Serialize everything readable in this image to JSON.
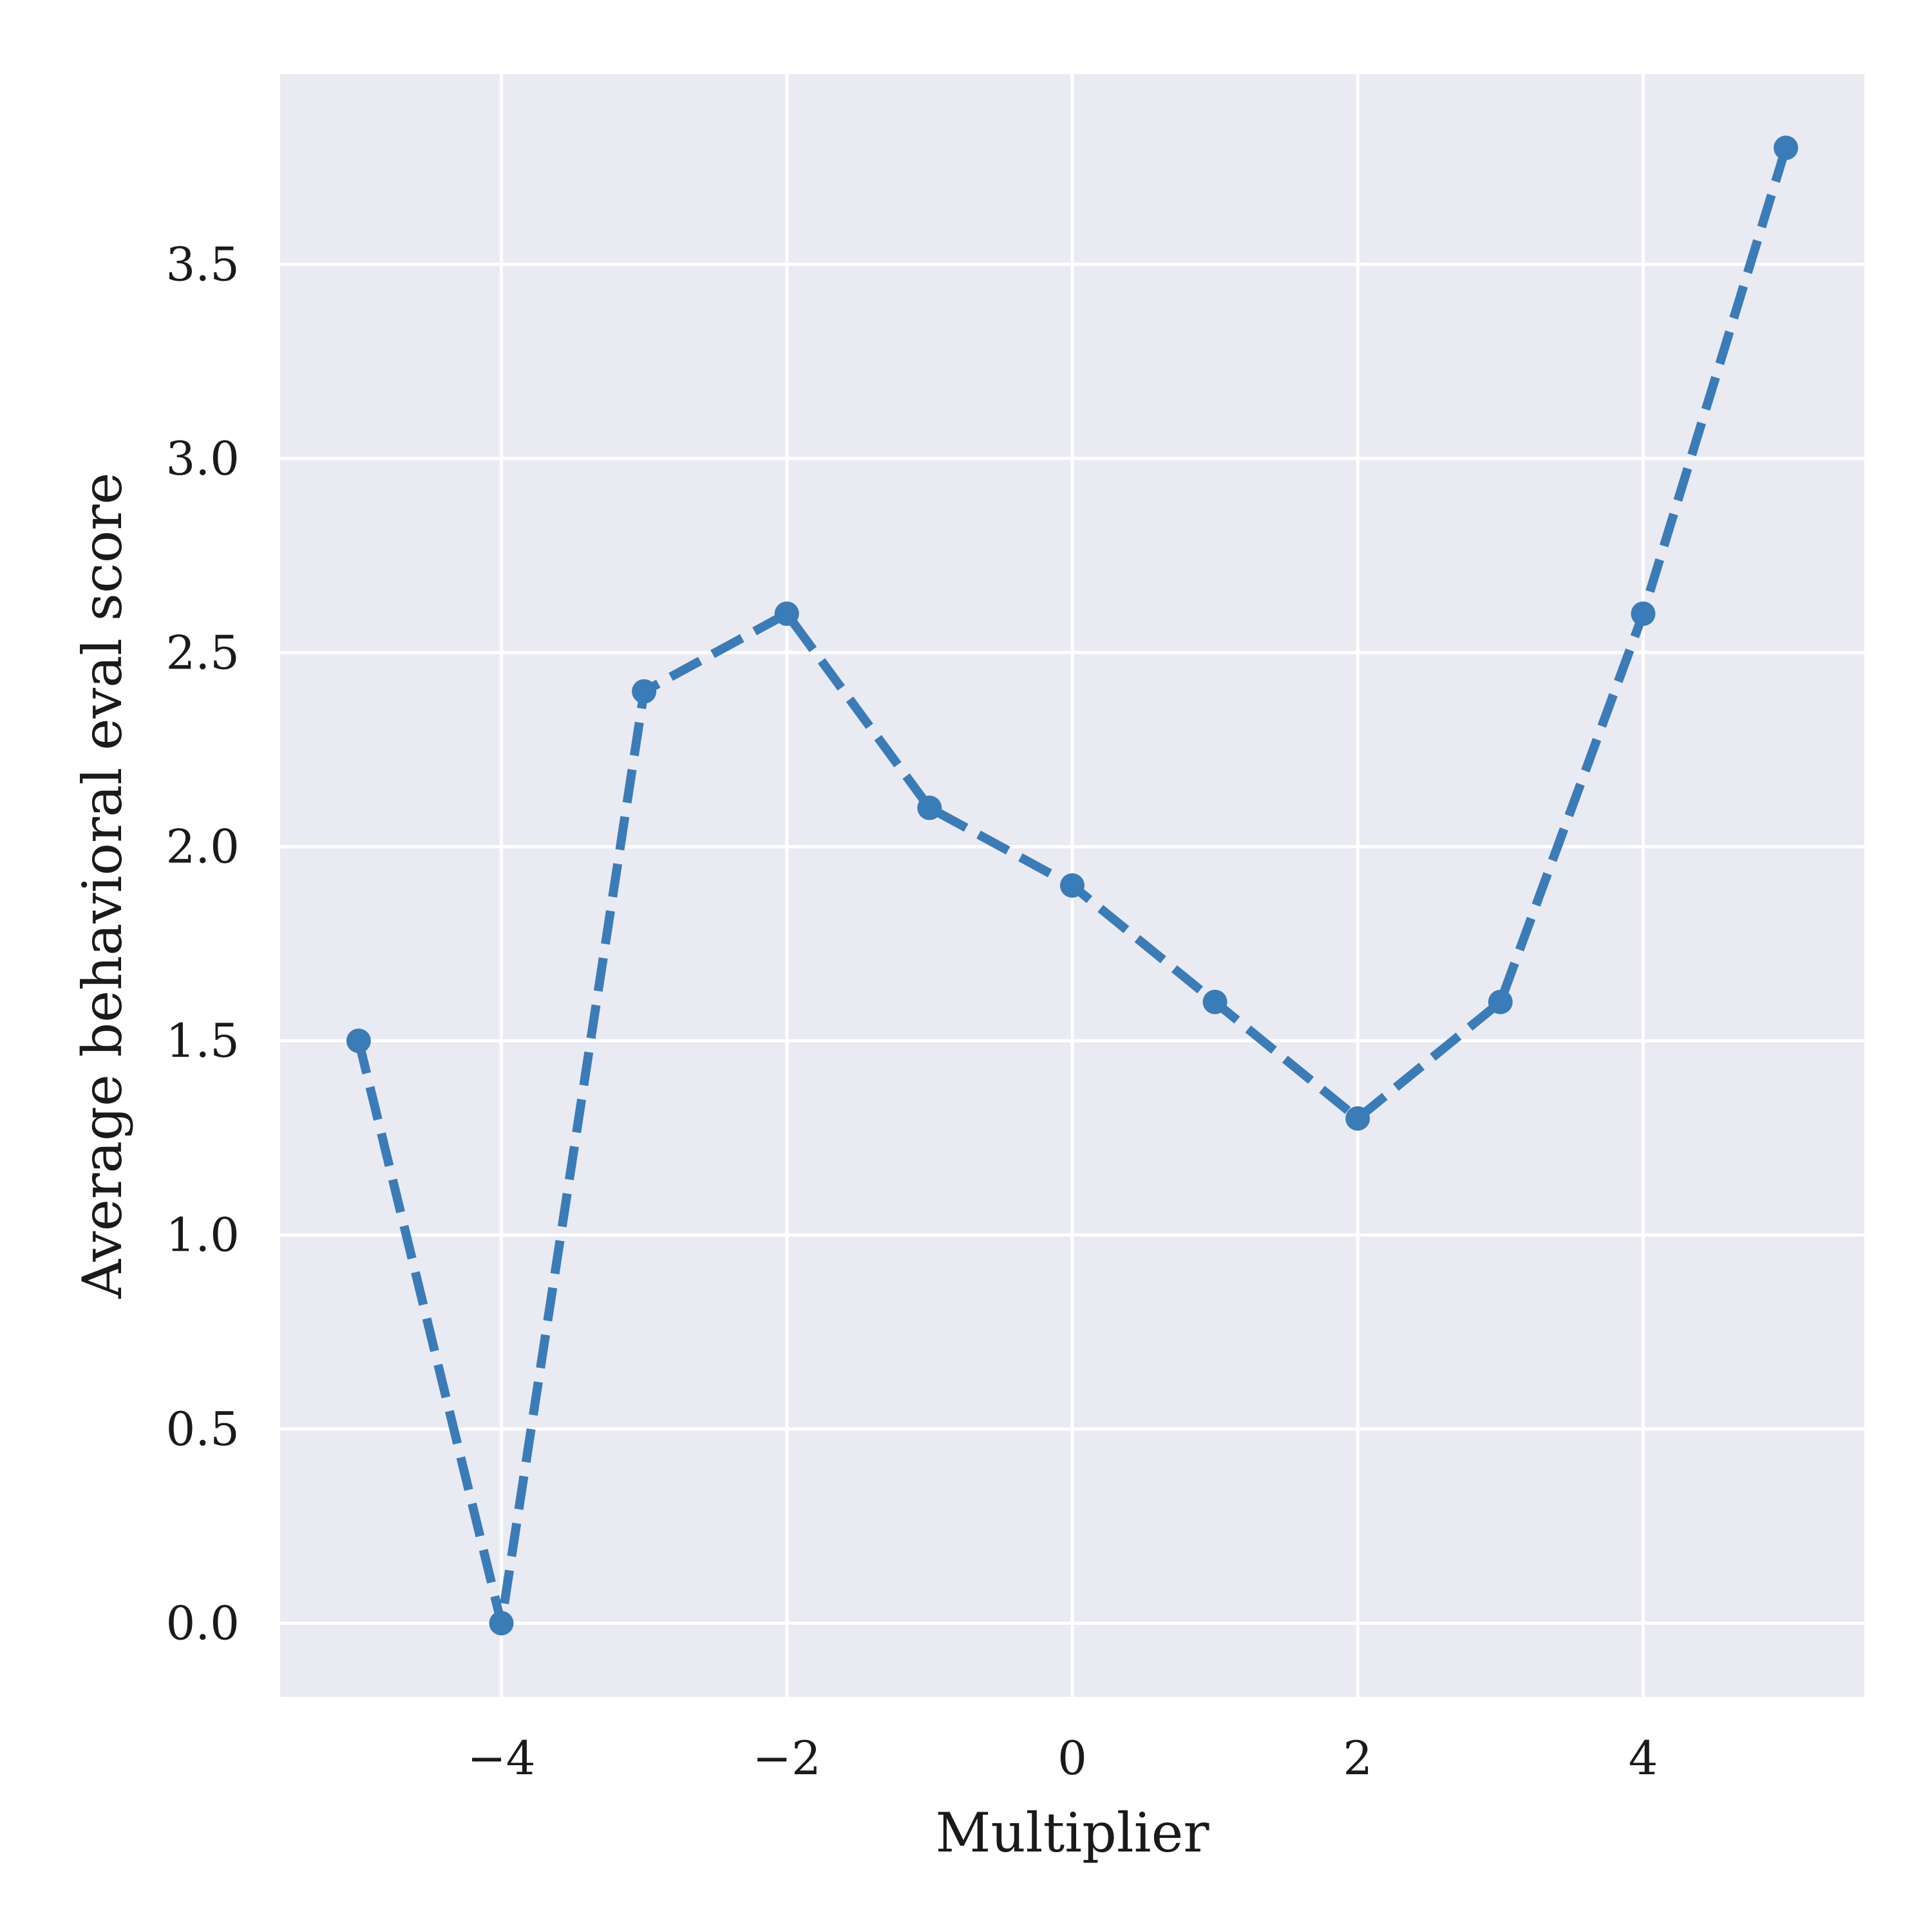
{
  "chart_data": {
    "type": "line",
    "xlabel": "Multiplier",
    "ylabel": "Average behavioral eval score",
    "xlim": [
      -5.55,
      5.55
    ],
    "ylim": [
      -0.19,
      3.99
    ],
    "grid": true,
    "x_ticks": [
      -4,
      -2,
      0,
      2,
      4
    ],
    "x_tick_labels": [
      "−4",
      "−2",
      "0",
      "2",
      "4"
    ],
    "y_ticks": [
      0.0,
      0.5,
      1.0,
      1.5,
      2.0,
      2.5,
      3.0,
      3.5
    ],
    "y_tick_labels": [
      "0.0",
      "0.5",
      "1.0",
      "1.5",
      "2.0",
      "2.5",
      "3.0",
      "3.5"
    ],
    "series": [
      {
        "x": [
          -5,
          -4,
          -3,
          -2,
          -1,
          0,
          1,
          2,
          3,
          4,
          5
        ],
        "values": [
          1.5,
          0.0,
          2.4,
          2.6,
          2.1,
          1.9,
          1.6,
          1.3,
          1.6,
          2.6,
          3.8
        ],
        "color": "#3a7cb8",
        "line_style": "dashed",
        "marker": "circle"
      }
    ],
    "colors": {
      "plot_background": "#eaeaf2",
      "grid": "#ffffff",
      "series": "#3a7cb8"
    }
  }
}
